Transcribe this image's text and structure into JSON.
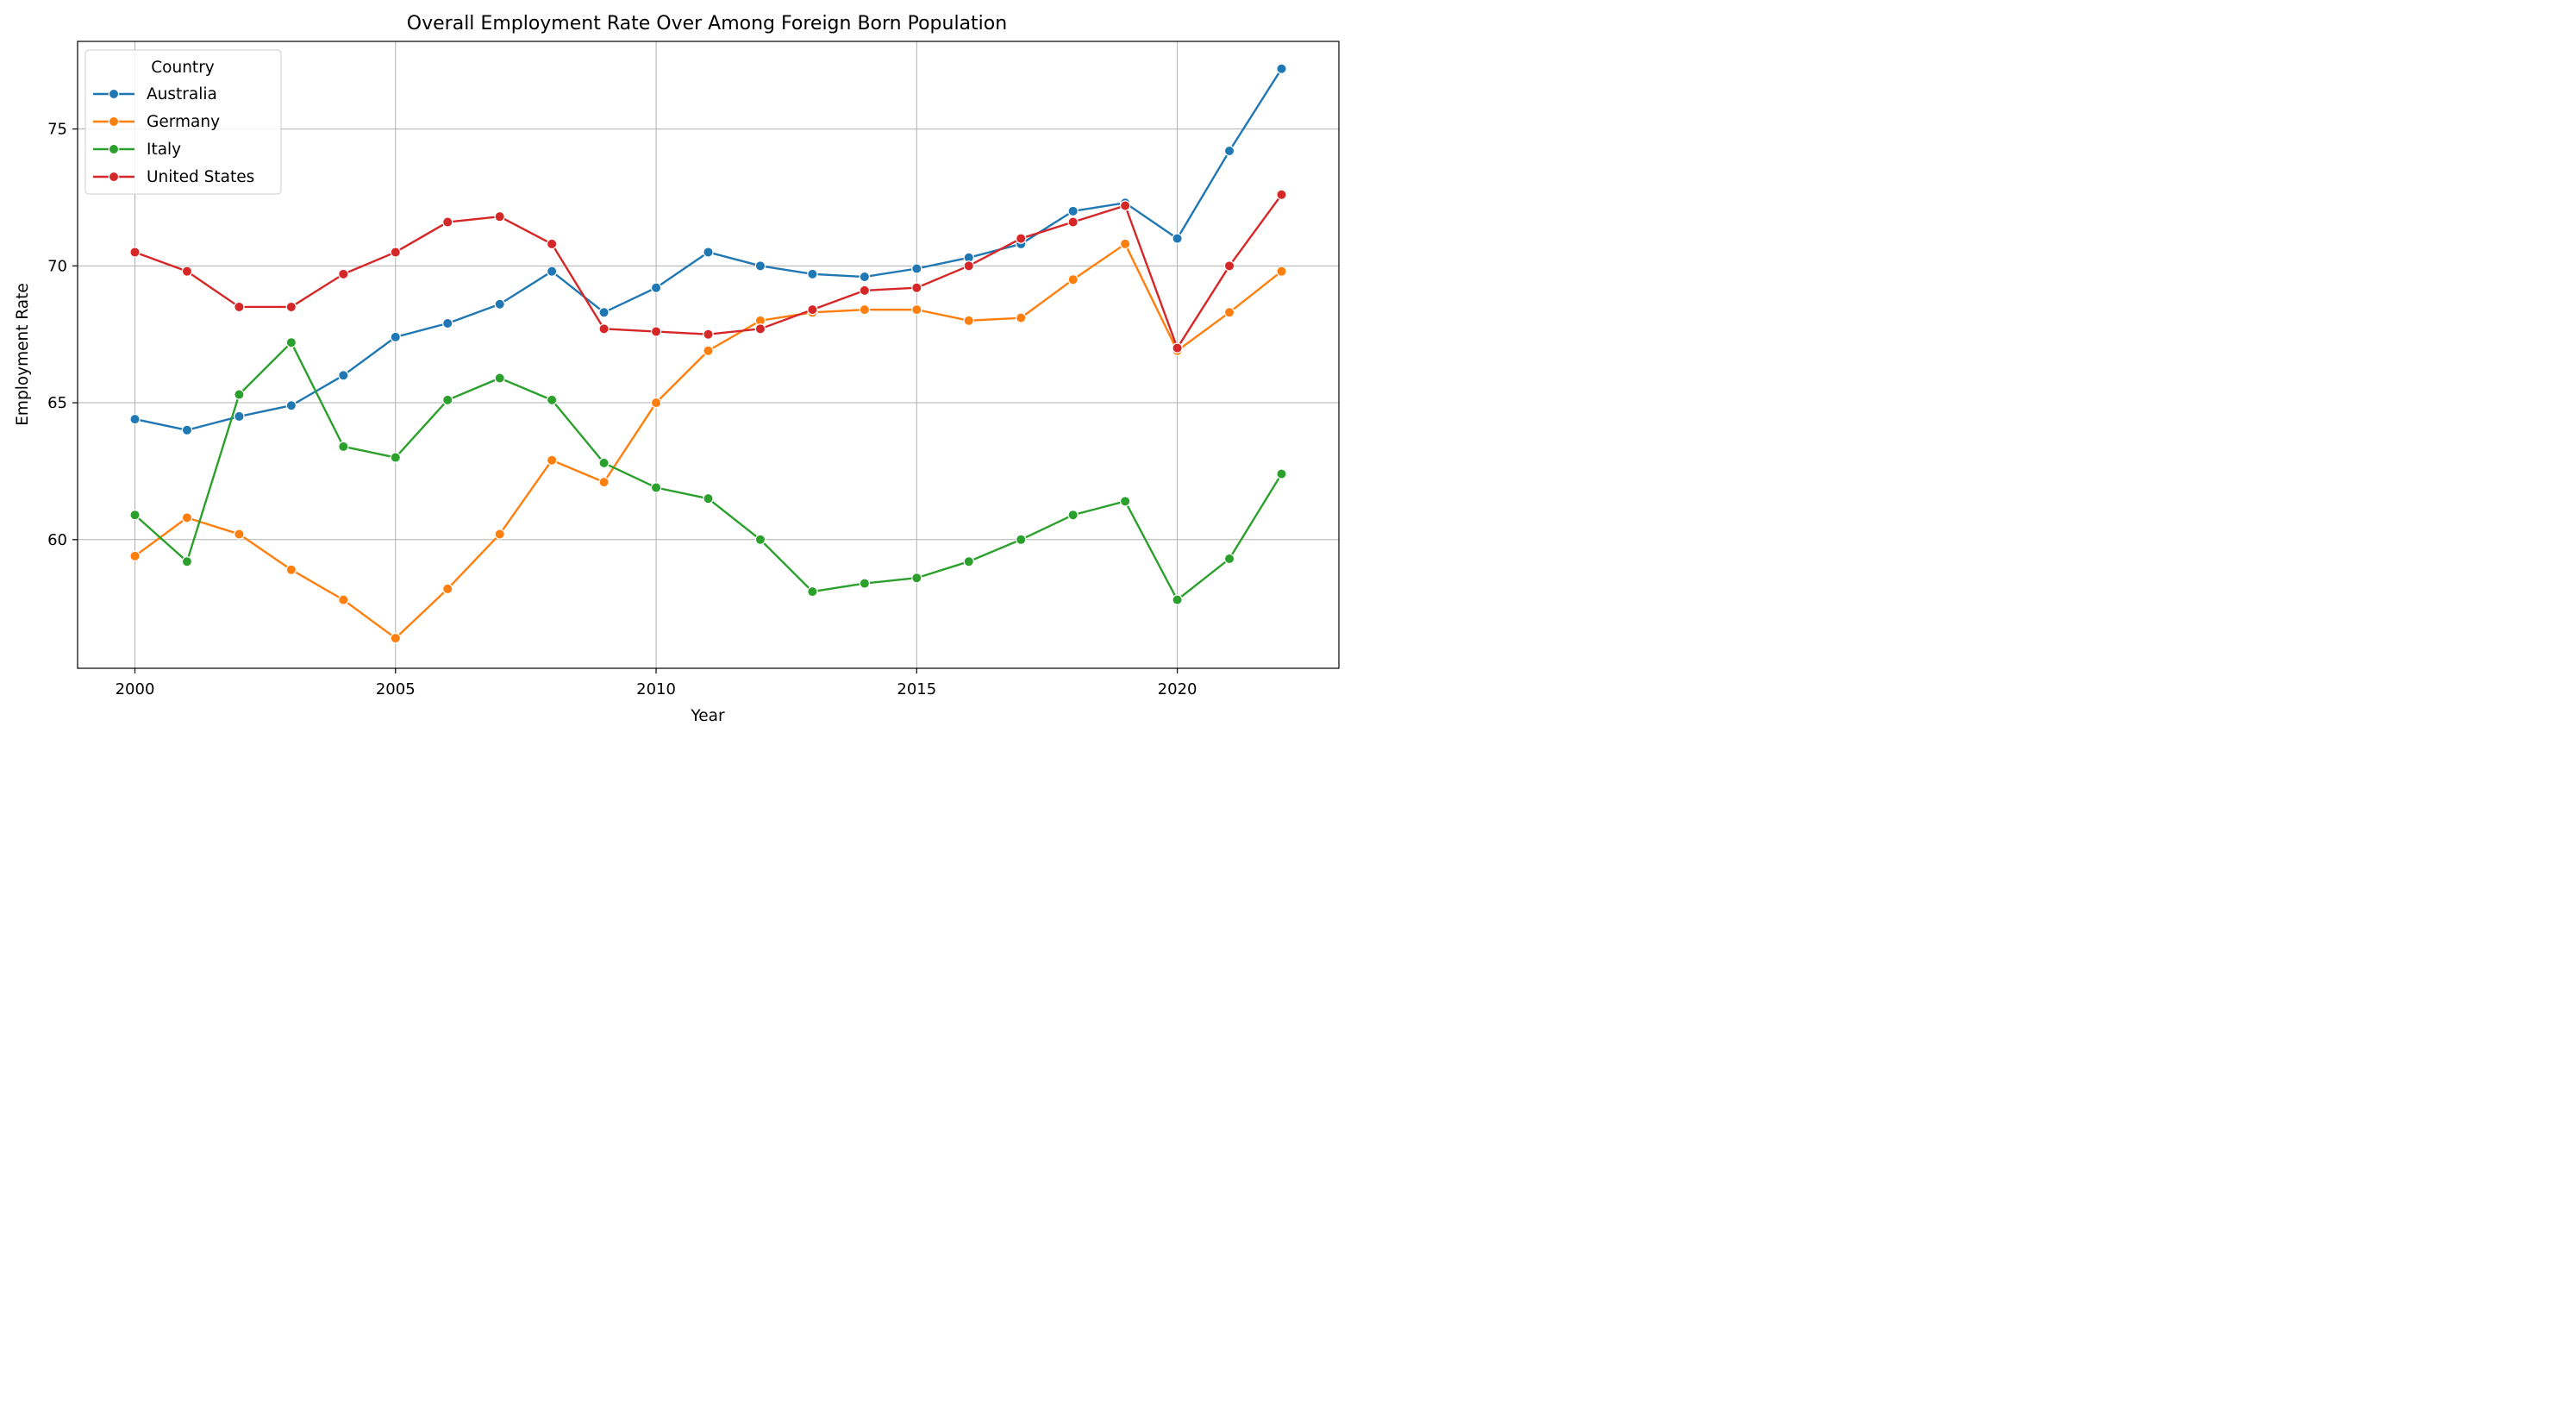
{
  "chart_data": {
    "type": "line",
    "title": "Overall Employment Rate Over Among Foreign Born Population",
    "xlabel": "Year",
    "ylabel": "Employment Rate",
    "xlim": [
      1998.9,
      2023.1
    ],
    "ylim": [
      55.3,
      78.2
    ],
    "xticks": [
      2000,
      2005,
      2010,
      2015,
      2020
    ],
    "yticks": [
      60,
      65,
      70,
      75
    ],
    "grid": true,
    "legend": {
      "title": "Country",
      "placement": "top-left"
    },
    "x": [
      2000,
      2001,
      2002,
      2003,
      2004,
      2005,
      2006,
      2007,
      2008,
      2009,
      2010,
      2011,
      2012,
      2013,
      2014,
      2015,
      2016,
      2017,
      2018,
      2019,
      2020,
      2021,
      2022
    ],
    "series": [
      {
        "name": "Australia",
        "color": "#1f77b4",
        "values": [
          64.4,
          64.0,
          64.5,
          64.9,
          66.0,
          67.4,
          67.9,
          68.6,
          69.8,
          68.3,
          69.2,
          70.5,
          70.0,
          69.7,
          69.6,
          69.9,
          70.3,
          70.8,
          72.0,
          72.3,
          71.0,
          74.2,
          77.2
        ]
      },
      {
        "name": "Germany",
        "color": "#ff7f0e",
        "values": [
          59.4,
          60.8,
          60.2,
          58.9,
          57.8,
          56.4,
          58.2,
          60.2,
          62.9,
          62.1,
          65.0,
          66.9,
          68.0,
          68.3,
          68.4,
          68.4,
          68.0,
          68.1,
          69.5,
          70.8,
          66.9,
          68.3,
          69.8
        ]
      },
      {
        "name": "Italy",
        "color": "#2ca02c",
        "values": [
          60.9,
          59.2,
          65.3,
          67.2,
          63.4,
          63.0,
          65.1,
          65.9,
          65.1,
          62.8,
          61.9,
          61.5,
          60.0,
          58.1,
          58.4,
          58.6,
          59.2,
          60.0,
          60.9,
          61.4,
          57.8,
          59.3,
          62.4
        ]
      },
      {
        "name": "United States",
        "color": "#d62728",
        "values": [
          70.5,
          69.8,
          68.5,
          68.5,
          69.7,
          70.5,
          71.6,
          71.8,
          70.8,
          67.7,
          67.6,
          67.5,
          67.7,
          68.4,
          69.1,
          69.2,
          70.0,
          71.0,
          71.6,
          72.2,
          67.0,
          70.0,
          72.6
        ]
      }
    ]
  }
}
